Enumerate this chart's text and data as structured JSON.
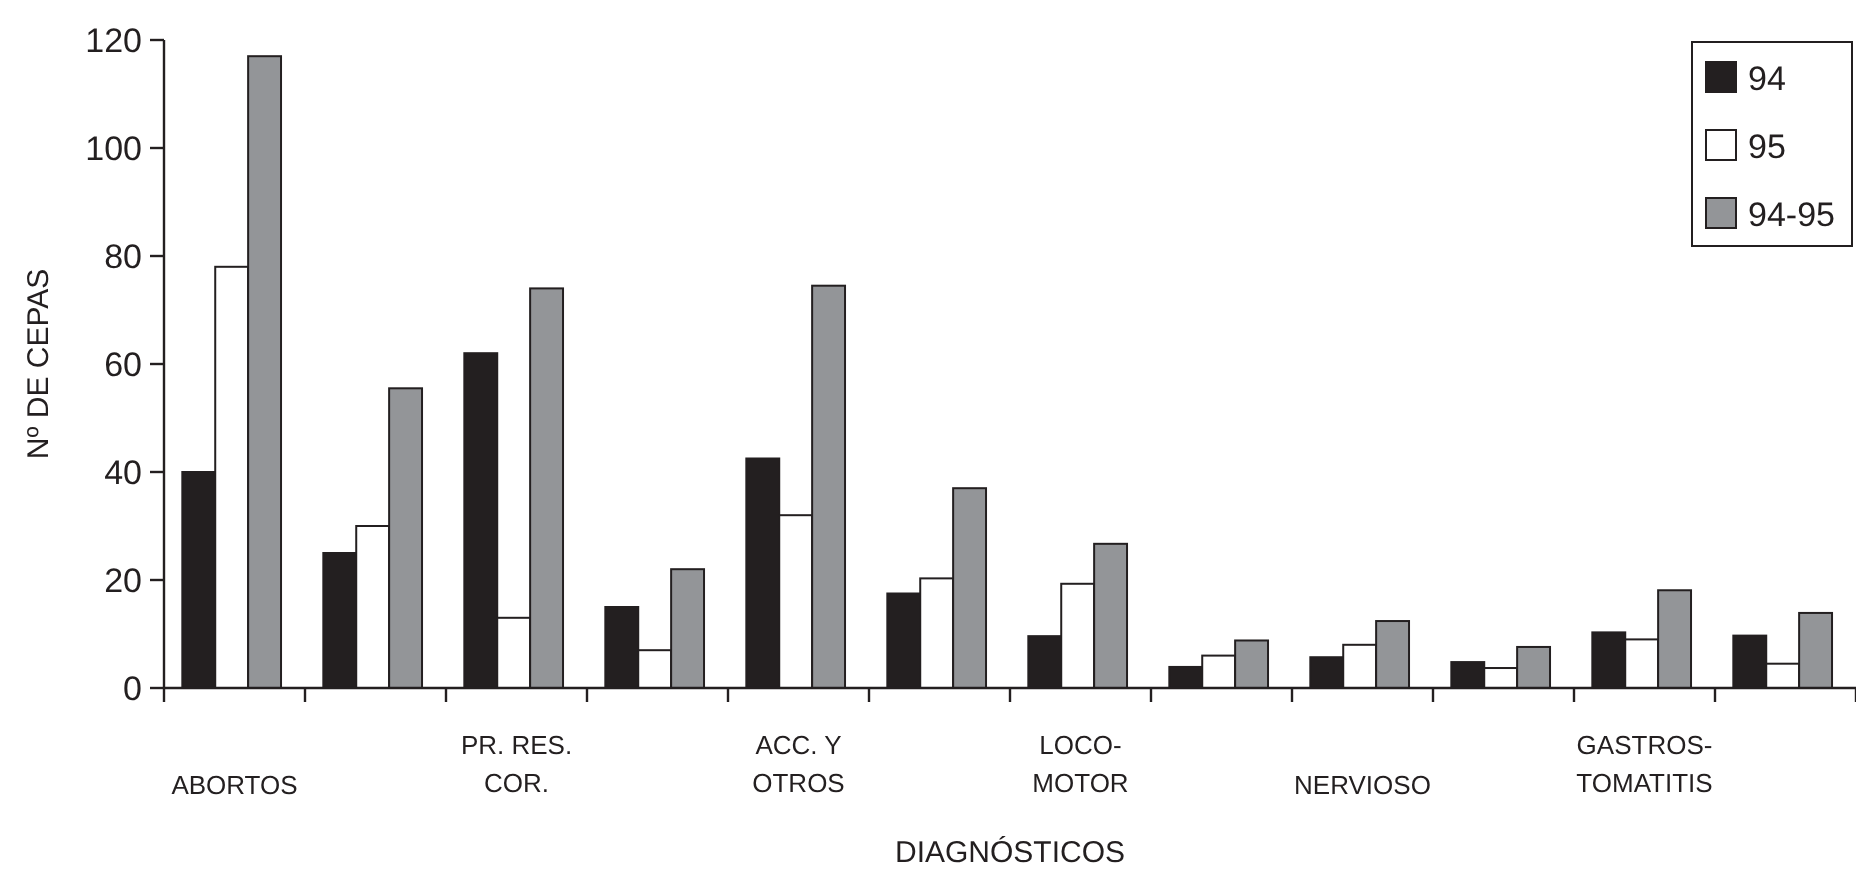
{
  "chart_data": {
    "type": "bar",
    "xlabel": "DIAGNÓSTICOS",
    "ylabel": "Nº DE CEPAS",
    "categories": [
      "ABORTOS",
      null,
      "PR. RES.\nCOR.",
      null,
      "ACC. Y\nOTROS",
      null,
      "LOCO-\nMOTOR",
      null,
      "NERVIOSO",
      null,
      "GASTROS-\nTOMATITIS",
      null
    ],
    "series": [
      {
        "name": "94",
        "color": "#231f20",
        "values": [
          40,
          25,
          62,
          15,
          42.5,
          17.5,
          9.6,
          3.9,
          5.7,
          4.8,
          10.3,
          9.7
        ]
      },
      {
        "name": "95",
        "color": "#ffffff",
        "values": [
          78,
          30,
          13,
          7,
          32,
          20.3,
          19.3,
          6,
          8,
          3.7,
          9,
          4.5
        ]
      },
      {
        "name": "94-95",
        "color": "#939598",
        "values": [
          117,
          55.5,
          74,
          22,
          74.5,
          37,
          26.7,
          8.8,
          12.4,
          7.6,
          18.1,
          13.9
        ]
      }
    ],
    "ylim": [
      0,
      120
    ],
    "yticks": [
      0,
      20,
      40,
      60,
      80,
      100,
      120
    ],
    "legend": "top right"
  }
}
